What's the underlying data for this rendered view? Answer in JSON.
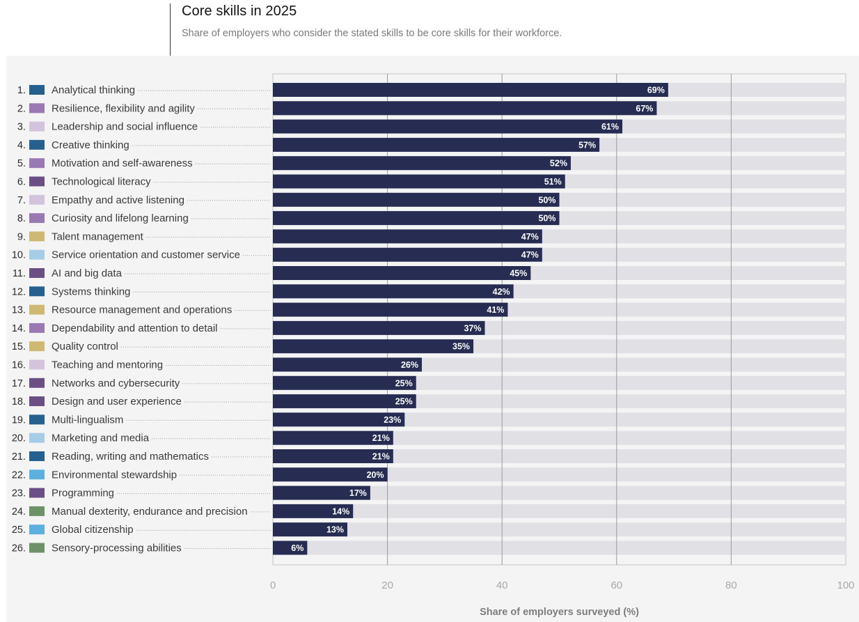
{
  "header": {
    "title": "Core skills in 2025",
    "subtitle": "Share of employers who consider the stated skills to be core skills for their workforce."
  },
  "colors": {
    "bar": "#262c52",
    "track": "#e1e1e5",
    "background": "#f4f4f4",
    "gridline": "#9a9a9a",
    "categories": {
      "cognitive": "#26608e",
      "self_efficacy": "#9a79b2",
      "working_with_others": "#d3c3dc",
      "technology": "#6b4e83",
      "management": "#cdb874",
      "engagement": "#a6cde5",
      "ethics": "#5db0de",
      "physical": "#6e9267"
    }
  },
  "chart_data": {
    "type": "bar",
    "orientation": "horizontal",
    "xlabel": "Share of employers surveyed (%)",
    "xlim": [
      0,
      100
    ],
    "xticks": [
      0,
      20,
      40,
      60,
      80,
      100
    ],
    "grid": true,
    "categories": [
      {
        "rank": "1.",
        "label": "Analytical thinking",
        "value": 69,
        "value_label": "69%",
        "color": "#26608e"
      },
      {
        "rank": "2.",
        "label": "Resilience, flexibility and agility",
        "value": 67,
        "value_label": "67%",
        "color": "#9a79b2"
      },
      {
        "rank": "3.",
        "label": "Leadership and social influence",
        "value": 61,
        "value_label": "61%",
        "color": "#d3c3dc"
      },
      {
        "rank": "4.",
        "label": "Creative thinking",
        "value": 57,
        "value_label": "57%",
        "color": "#26608e"
      },
      {
        "rank": "5.",
        "label": "Motivation and self-awareness",
        "value": 52,
        "value_label": "52%",
        "color": "#9a79b2"
      },
      {
        "rank": "6.",
        "label": "Technological literacy",
        "value": 51,
        "value_label": "51%",
        "color": "#6b4e83"
      },
      {
        "rank": "7.",
        "label": "Empathy and active listening",
        "value": 50,
        "value_label": "50%",
        "color": "#d3c3dc"
      },
      {
        "rank": "8.",
        "label": "Curiosity and lifelong learning",
        "value": 50,
        "value_label": "50%",
        "color": "#9a79b2"
      },
      {
        "rank": "9.",
        "label": "Talent management",
        "value": 47,
        "value_label": "47%",
        "color": "#cdb874"
      },
      {
        "rank": "10.",
        "label": "Service orientation and customer service",
        "value": 47,
        "value_label": "47%",
        "color": "#a6cde5"
      },
      {
        "rank": "11.",
        "label": "AI and big data",
        "value": 45,
        "value_label": "45%",
        "color": "#6b4e83"
      },
      {
        "rank": "12.",
        "label": "Systems thinking",
        "value": 42,
        "value_label": "42%",
        "color": "#26608e"
      },
      {
        "rank": "13.",
        "label": "Resource management and operations",
        "value": 41,
        "value_label": "41%",
        "color": "#cdb874"
      },
      {
        "rank": "14.",
        "label": "Dependability and attention to detail",
        "value": 37,
        "value_label": "37%",
        "color": "#9a79b2"
      },
      {
        "rank": "15.",
        "label": "Quality control",
        "value": 35,
        "value_label": "35%",
        "color": "#cdb874"
      },
      {
        "rank": "16.",
        "label": "Teaching and mentoring",
        "value": 26,
        "value_label": "26%",
        "color": "#d3c3dc"
      },
      {
        "rank": "17.",
        "label": "Networks and cybersecurity",
        "value": 25,
        "value_label": "25%",
        "color": "#6b4e83"
      },
      {
        "rank": "18.",
        "label": "Design and user experience",
        "value": 25,
        "value_label": "25%",
        "color": "#6b4e83"
      },
      {
        "rank": "19.",
        "label": "Multi-lingualism",
        "value": 23,
        "value_label": "23%",
        "color": "#26608e"
      },
      {
        "rank": "20.",
        "label": "Marketing and media",
        "value": 21,
        "value_label": "21%",
        "color": "#a6cde5"
      },
      {
        "rank": "21.",
        "label": "Reading, writing and mathematics",
        "value": 21,
        "value_label": "21%",
        "color": "#26608e"
      },
      {
        "rank": "22.",
        "label": "Environmental stewardship",
        "value": 20,
        "value_label": "20%",
        "color": "#5db0de"
      },
      {
        "rank": "23.",
        "label": "Programming",
        "value": 17,
        "value_label": "17%",
        "color": "#6b4e83"
      },
      {
        "rank": "24.",
        "label": "Manual dexterity, endurance and precision",
        "value": 14,
        "value_label": "14%",
        "color": "#6e9267"
      },
      {
        "rank": "25.",
        "label": "Global citizenship",
        "value": 13,
        "value_label": "13%",
        "color": "#5db0de"
      },
      {
        "rank": "26.",
        "label": "Sensory-processing abilities",
        "value": 6,
        "value_label": "6%",
        "color": "#6e9267"
      }
    ]
  }
}
